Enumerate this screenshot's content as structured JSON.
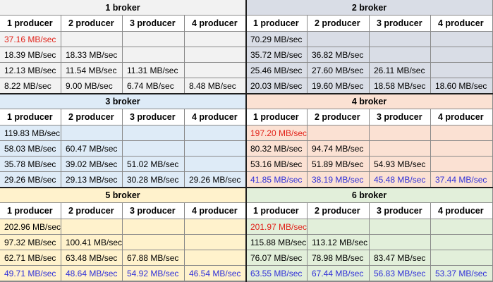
{
  "blocks": [
    {
      "title": "1 broker",
      "colors": {
        "title": "#f2f2f2",
        "header": "#ffffff",
        "body": "#f2f2f2"
      },
      "headers": [
        "1 producer",
        "2 producer",
        "3 producer",
        "4 producer"
      ],
      "rows": [
        [
          "37.16 MB/sec",
          "",
          "",
          ""
        ],
        [
          "18.39 MB/sec",
          "18.33 MB/sec",
          "",
          ""
        ],
        [
          "12.13 MB/sec",
          "11.54 MB/sec",
          "11.31 MB/sec",
          ""
        ],
        [
          "8.22 MB/sec",
          "9.00 MB/sec",
          "6.74 MB/sec",
          "8.48 MB/sec"
        ]
      ],
      "highlights": [
        {
          "row": 0,
          "col": 0,
          "color": "red"
        }
      ]
    },
    {
      "title": "2 broker",
      "colors": {
        "title": "#d9dde6",
        "header": "#ffffff",
        "body": "#d9dde6"
      },
      "headers": [
        "1 producer",
        "2 producer",
        "3 producer",
        "4 producer"
      ],
      "rows": [
        [
          "70.29 MB/sec",
          "",
          "",
          ""
        ],
        [
          "35.72 MB/sec",
          "36.82 MB/sec",
          "",
          ""
        ],
        [
          "25.46 MB/sec",
          "27.60 MB/sec",
          "26.11 MB/sec",
          ""
        ],
        [
          "20.03 MB/sec",
          "19.60 MB/sec",
          "18.58 MB/sec",
          "18.60 MB/sec"
        ]
      ],
      "highlights": []
    },
    {
      "title": "3 broker",
      "colors": {
        "title": "#deebf7",
        "header": "#ffffff",
        "body": "#deebf7"
      },
      "headers": [
        "1 producer",
        "2 producer",
        "3 producer",
        "4 producer"
      ],
      "rows": [
        [
          "119.83 MB/sec",
          "",
          "",
          ""
        ],
        [
          "58.03 MB/sec",
          "60.47 MB/sec",
          "",
          ""
        ],
        [
          "35.78 MB/sec",
          "39.02 MB/sec",
          "51.02 MB/sec",
          ""
        ],
        [
          "29.26 MB/sec",
          "29.13 MB/sec",
          "30.28 MB/sec",
          "29.26 MB/sec"
        ]
      ],
      "highlights": []
    },
    {
      "title": "4 broker",
      "colors": {
        "title": "#fbe1d3",
        "header": "#ffffff",
        "body": "#fbe1d3"
      },
      "headers": [
        "1 producer",
        "2 producer",
        "3 producer",
        "4 producer"
      ],
      "rows": [
        [
          "197.20 MB/sec",
          "",
          "",
          ""
        ],
        [
          "80.32 MB/sec",
          "94.74 MB/sec",
          "",
          ""
        ],
        [
          "53.16 MB/sec",
          "51.89 MB/sec",
          "54.93 MB/sec",
          ""
        ],
        [
          "41.85 MB/sec",
          "38.19 MB/sec",
          "45.48 MB/sec",
          "37.44 MB/sec"
        ]
      ],
      "highlights": [
        {
          "row": 0,
          "col": 0,
          "color": "red"
        },
        {
          "row": 3,
          "col": 0,
          "color": "blue"
        },
        {
          "row": 3,
          "col": 1,
          "color": "blue"
        },
        {
          "row": 3,
          "col": 2,
          "color": "blue"
        },
        {
          "row": 3,
          "col": 3,
          "color": "blue"
        }
      ]
    },
    {
      "title": "5 broker",
      "colors": {
        "title": "#fff2cc",
        "header": "#ffffff",
        "body": "#fff2cc"
      },
      "headers": [
        "1 producer",
        "2 producer",
        "3 producer",
        "4 producer"
      ],
      "rows": [
        [
          "202.96 MB/sec",
          "",
          "",
          ""
        ],
        [
          "97.32 MB/sec",
          "100.41 MB/sec",
          "",
          ""
        ],
        [
          "62.71 MB/sec",
          "63.48 MB/sec",
          "67.88 MB/sec",
          ""
        ],
        [
          "49.71 MB/sec",
          "48.64 MB/sec",
          "54.92 MB/sec",
          "46.54 MB/sec"
        ]
      ],
      "highlights": [
        {
          "row": 3,
          "col": 0,
          "color": "blue"
        },
        {
          "row": 3,
          "col": 1,
          "color": "blue"
        },
        {
          "row": 3,
          "col": 2,
          "color": "blue"
        },
        {
          "row": 3,
          "col": 3,
          "color": "blue"
        }
      ]
    },
    {
      "title": "6 broker",
      "colors": {
        "title": "#e2efda",
        "header": "#ffffff",
        "body": "#e2efda"
      },
      "headers": [
        "1 producer",
        "2 producer",
        "3 producer",
        "4 producer"
      ],
      "rows": [
        [
          "201.97 MB/sec",
          "",
          "",
          ""
        ],
        [
          "115.88 MB/sec",
          "113.12 MB/sec",
          "",
          ""
        ],
        [
          "76.07 MB/sec",
          "78.98 MB/sec",
          "83.47 MB/sec",
          ""
        ],
        [
          "63.55 MB/sec",
          "67.44 MB/sec",
          "56.83 MB/sec",
          "53.37 MB/sec"
        ]
      ],
      "highlights": [
        {
          "row": 0,
          "col": 0,
          "color": "red"
        },
        {
          "row": 3,
          "col": 0,
          "color": "blue"
        },
        {
          "row": 3,
          "col": 1,
          "color": "blue"
        },
        {
          "row": 3,
          "col": 2,
          "color": "blue"
        },
        {
          "row": 3,
          "col": 3,
          "color": "blue"
        }
      ]
    }
  ]
}
